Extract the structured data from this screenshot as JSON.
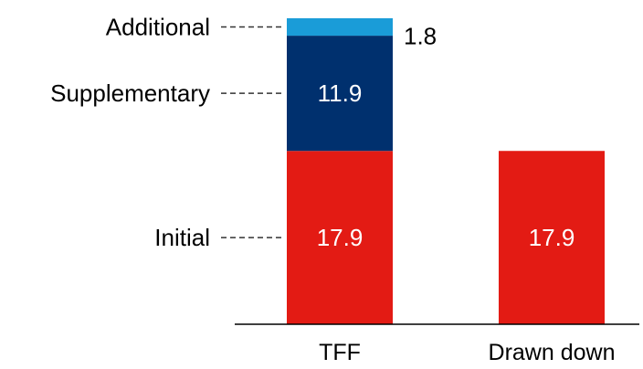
{
  "chart_data": {
    "type": "bar",
    "stacked": true,
    "categories": [
      "TFF",
      "Drawn down"
    ],
    "series": [
      {
        "name": "Initial",
        "values": [
          17.9,
          17.9
        ],
        "color": "#e31b14",
        "label_color": "#ffffff"
      },
      {
        "name": "Supplementary",
        "values": [
          11.9,
          null
        ],
        "color": "#00306e",
        "label_color": "#ffffff"
      },
      {
        "name": "Additional",
        "values": [
          1.8,
          null
        ],
        "color": "#1a9cd8",
        "label_color": "#000000"
      }
    ],
    "ylim": [
      0,
      31.6
    ],
    "grid": false,
    "legend": "left, leader lines to first bar"
  }
}
